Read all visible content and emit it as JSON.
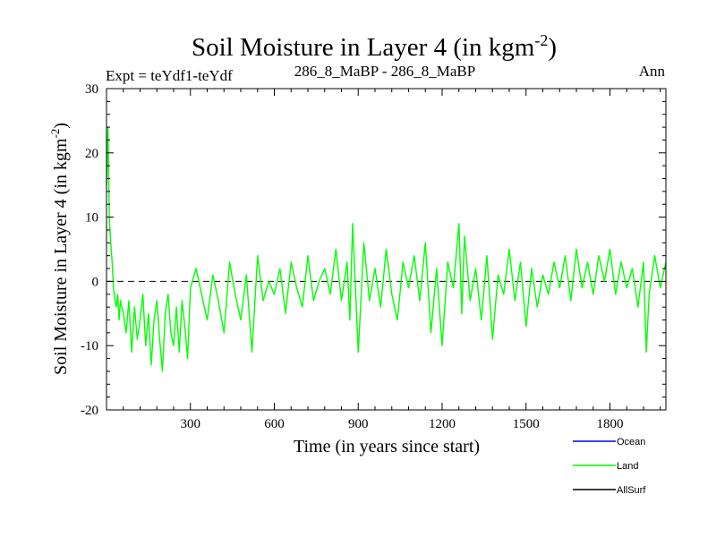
{
  "chart_data": {
    "type": "line",
    "title_main": "Soil Moisture in Layer 4 (in kgm",
    "title_sup": "-2",
    "title_close": ")",
    "subtitle_left": "Expt = teYdf1-teYdf",
    "subtitle_center": "286_8_MaBP - 286_8_MaBP",
    "subtitle_right": "Ann",
    "xlabel": "Time (in years since start)",
    "ylabel_main": "Soil Moisture in Layer 4 (in kgm",
    "ylabel_sup": "-2",
    "ylabel_close": ")",
    "xlim": [
      0,
      2000
    ],
    "ylim": [
      -20,
      30
    ],
    "x_ticks": [
      300,
      600,
      900,
      1200,
      1500,
      1800
    ],
    "x_tick_labels": [
      "300",
      "600",
      "900",
      "1200",
      "1500",
      "1800"
    ],
    "y_ticks": [
      -20,
      -10,
      0,
      10,
      20,
      30
    ],
    "y_tick_labels": [
      "-20",
      "-10",
      "0",
      "10",
      "20",
      "30"
    ],
    "reference_line": {
      "y": 0,
      "style": "dashed",
      "color": "#000000"
    },
    "series": [
      {
        "name": "Ocean",
        "color": "#0000ff",
        "x": [],
        "y": []
      },
      {
        "name": "Land",
        "color": "#00ff00",
        "x": [
          0,
          5,
          10,
          15,
          20,
          25,
          30,
          35,
          40,
          45,
          50,
          60,
          70,
          80,
          90,
          100,
          110,
          120,
          130,
          140,
          150,
          160,
          170,
          180,
          190,
          200,
          210,
          220,
          230,
          240,
          250,
          260,
          270,
          280,
          290,
          300,
          320,
          340,
          360,
          380,
          400,
          420,
          440,
          460,
          480,
          500,
          520,
          540,
          560,
          580,
          600,
          620,
          640,
          660,
          680,
          700,
          720,
          740,
          760,
          780,
          800,
          820,
          840,
          860,
          870,
          880,
          900,
          920,
          940,
          960,
          980,
          1000,
          1020,
          1040,
          1060,
          1080,
          1100,
          1120,
          1140,
          1160,
          1180,
          1200,
          1220,
          1240,
          1260,
          1270,
          1280,
          1300,
          1320,
          1340,
          1360,
          1380,
          1400,
          1420,
          1440,
          1460,
          1480,
          1500,
          1520,
          1540,
          1560,
          1580,
          1600,
          1620,
          1640,
          1660,
          1680,
          1700,
          1720,
          1740,
          1760,
          1780,
          1800,
          1820,
          1840,
          1860,
          1880,
          1900,
          1920,
          1930,
          1940,
          1960,
          1980,
          2000
        ],
        "y": [
          15,
          24,
          10,
          6,
          3,
          -1,
          -3,
          -4,
          -2,
          -6,
          -3,
          -5,
          -8,
          -3,
          -11,
          -4,
          -9,
          -6,
          -2,
          -10,
          -5,
          -13,
          -6,
          -3,
          -9,
          -14,
          -5,
          -2,
          -8,
          -10,
          -4,
          -11,
          -3,
          -7,
          -12,
          -1,
          2,
          -2,
          -6,
          1,
          -3,
          -8,
          3,
          -2,
          -6,
          1,
          -11,
          4,
          -3,
          0,
          -2,
          2,
          -5,
          3,
          -1,
          -4,
          4,
          -3,
          0,
          2,
          -2,
          5,
          -3,
          3,
          -6,
          9,
          -11,
          6,
          -3,
          2,
          -4,
          5,
          -2,
          -6,
          3,
          -1,
          4,
          -3,
          6,
          -8,
          2,
          -10,
          3,
          -1,
          9,
          -5,
          7,
          -3,
          2,
          -6,
          4,
          -9,
          1,
          -2,
          5,
          -3,
          3,
          -7,
          2,
          -4,
          1,
          -2,
          3,
          -1,
          4,
          -3,
          5,
          -1,
          3,
          -2,
          4,
          0,
          5,
          -2,
          3,
          -1,
          2,
          -4,
          3,
          -11,
          -2,
          4,
          -1,
          3
        ]
      },
      {
        "name": "AllSurf",
        "color": "#000000",
        "x": [],
        "y": []
      }
    ],
    "legend": {
      "position": "bottom-right",
      "entries": [
        "Ocean",
        "Land",
        "AllSurf"
      ]
    }
  }
}
